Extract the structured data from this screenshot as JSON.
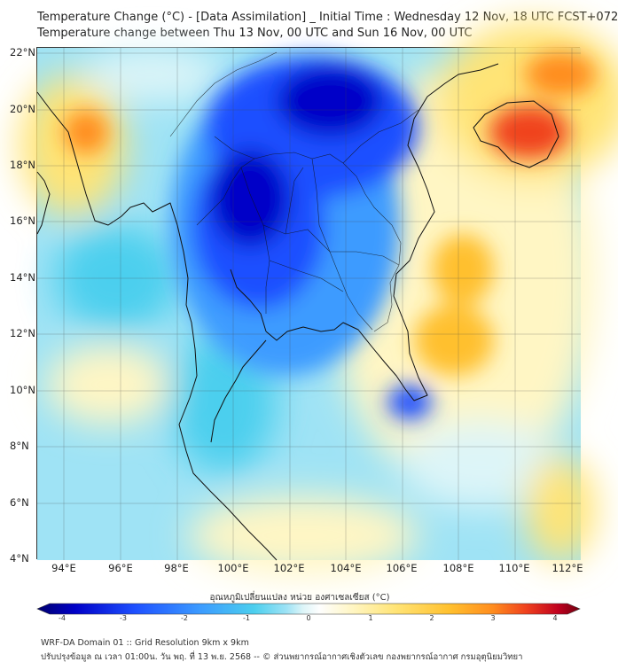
{
  "header": {
    "line1": "Temperature Change (°C) - [Data Assimilation] _ Initial Time : Wednesday 12 Nov, 18 UTC FCST+072",
    "line2": "Temperature change between Thu 13 Nov, 00 UTC and Sun 16 Nov, 00 UTC"
  },
  "map": {
    "lat_labels": [
      "22°N",
      "20°N",
      "18°N",
      "16°N",
      "14°N",
      "12°N",
      "10°N",
      "8°N",
      "6°N",
      "4°N"
    ],
    "lon_labels": [
      "94°E",
      "96°E",
      "98°E",
      "100°E",
      "102°E",
      "104°E",
      "106°E",
      "108°E",
      "110°E",
      "112°E"
    ]
  },
  "colorbar": {
    "title": "อุณหภูมิเปลี่ยนแปลง หน่วย องศาเซลเซียส (°C)",
    "tick_labels": [
      "-4",
      "-3",
      "-2",
      "-1",
      "0",
      "1",
      "2",
      "3",
      "4"
    ],
    "colors": [
      "#00006e",
      "#0000c8",
      "#1e50ff",
      "#3c9bff",
      "#4ccfee",
      "#9fe3f5",
      "#ddf5f8",
      "#fefefe",
      "#fff6c4",
      "#ffe476",
      "#ffc02e",
      "#ff8c1e",
      "#f0421e",
      "#c0001e",
      "#700010"
    ]
  },
  "footer": {
    "line1": "WRF-DA Domain 01 :: Grid Resolution 9km x 9km",
    "line2": "ปรับปรุงข้อมูล ณ เวลา 01:00น. วัน พฤ. ที่ 13 พ.ย. 2568 -- © ส่วนพยากรณ์อากาศเชิงตัวเลข กองพยากรณ์อากาศ กรมอุตุนิยมวิทยา"
  }
}
